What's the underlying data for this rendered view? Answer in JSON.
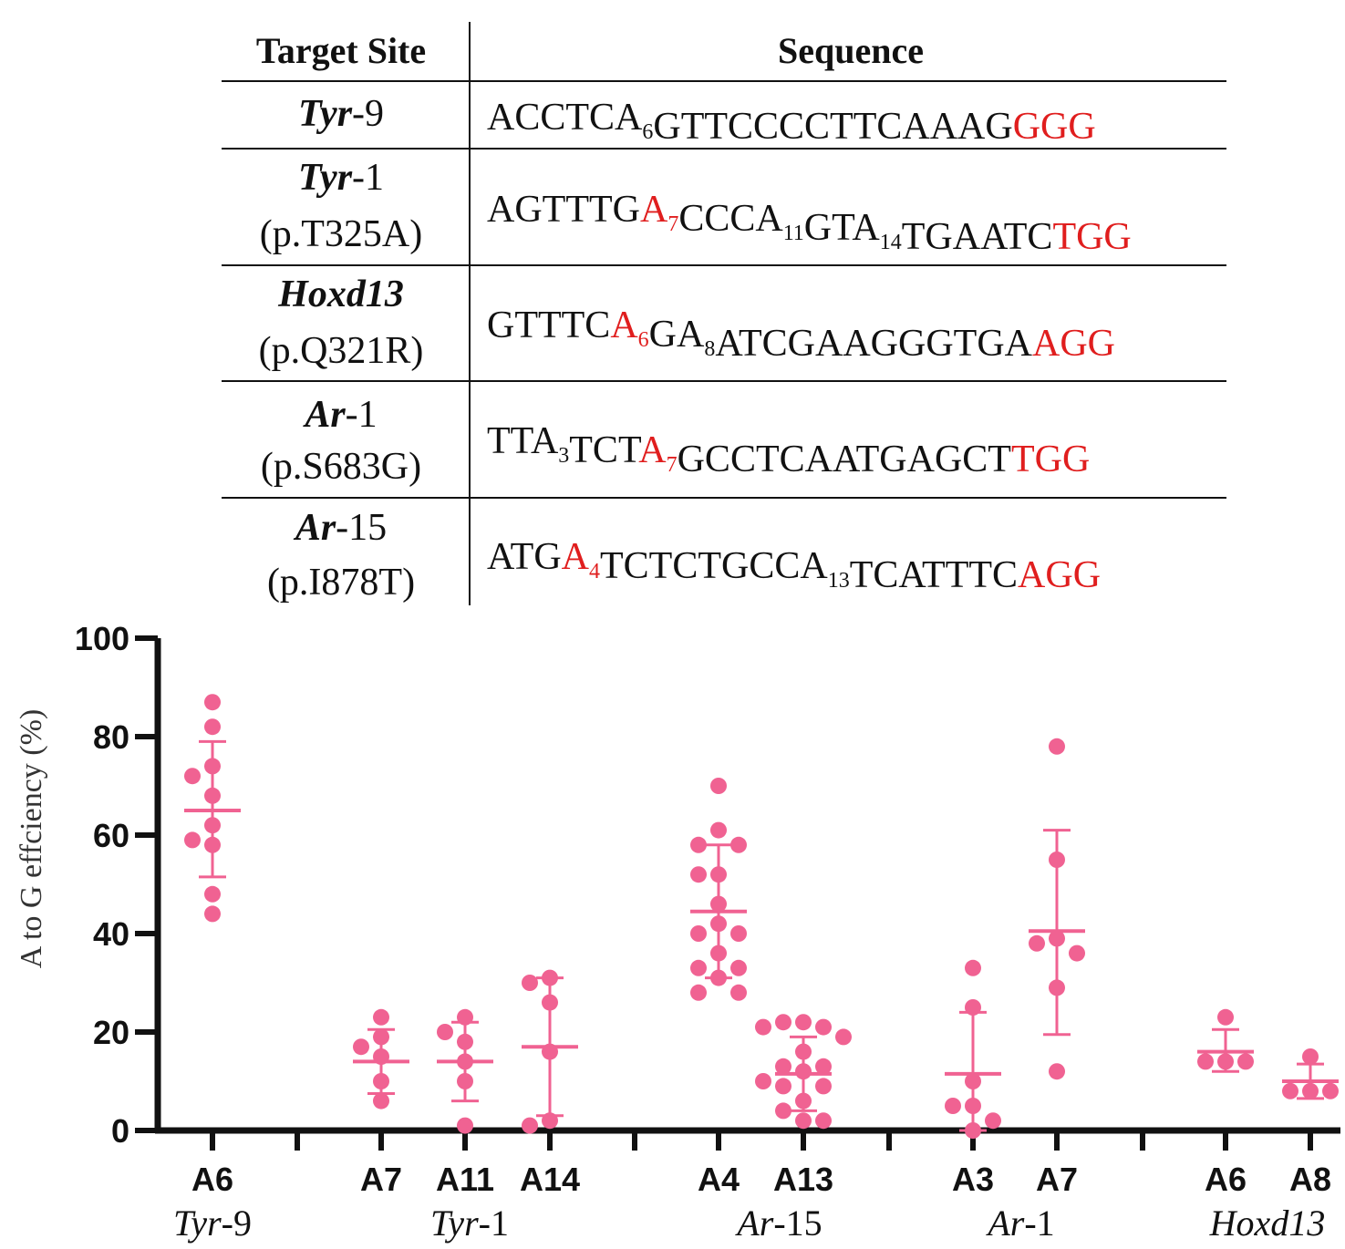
{
  "table": {
    "headers": [
      "Target Site",
      "Sequence"
    ],
    "rows": [
      {
        "site": [
          {
            "t": "Tyr",
            "i": true
          },
          {
            "t": "-9",
            "i": false
          }
        ],
        "sub": "",
        "seq": [
          {
            "t": "ACCTCA"
          },
          {
            "t": "6",
            "s": true
          },
          {
            "t": "GTTCCCCTTCAAAG"
          },
          {
            "t": "GGG",
            "r": true
          }
        ]
      },
      {
        "site": [
          {
            "t": "Tyr",
            "i": true
          },
          {
            "t": "-1",
            "i": false
          }
        ],
        "sub": "(p.T325A)",
        "seq": [
          {
            "t": "AGTTTG"
          },
          {
            "t": "A",
            "r": true
          },
          {
            "t": "7",
            "s": true,
            "r": true
          },
          {
            "t": "CCCA"
          },
          {
            "t": "11",
            "s": true
          },
          {
            "t": "GTA"
          },
          {
            "t": "14",
            "s": true
          },
          {
            "t": "TGAATC"
          },
          {
            "t": "TGG",
            "r": true
          }
        ]
      },
      {
        "site": [
          {
            "t": "Hoxd13",
            "i": true
          }
        ],
        "sub": "(p.Q321R)",
        "seq": [
          {
            "t": "GTTTC"
          },
          {
            "t": "A",
            "r": true
          },
          {
            "t": "6",
            "s": true,
            "r": true
          },
          {
            "t": "GA"
          },
          {
            "t": "8",
            "s": true
          },
          {
            "t": "ATCGAAGGGTGA"
          },
          {
            "t": "AGG",
            "r": true
          }
        ]
      },
      {
        "site": [
          {
            "t": "Ar",
            "i": true
          },
          {
            "t": "-1",
            "i": false
          }
        ],
        "sub": "(p.S683G)",
        "seq": [
          {
            "t": "TTA"
          },
          {
            "t": "3",
            "s": true
          },
          {
            "t": "TCT"
          },
          {
            "t": "A",
            "r": true
          },
          {
            "t": "7",
            "s": true,
            "r": true
          },
          {
            "t": "GCCTCAATGAGCT"
          },
          {
            "t": "TGG",
            "r": true
          }
        ]
      },
      {
        "site": [
          {
            "t": "Ar",
            "i": true
          },
          {
            "t": "-15",
            "i": false
          }
        ],
        "sub": "(p.I878T)",
        "seq": [
          {
            "t": "ATG"
          },
          {
            "t": "A",
            "r": true
          },
          {
            "t": "4",
            "s": true,
            "r": true
          },
          {
            "t": "TCTCTGCCA"
          },
          {
            "t": "13",
            "s": true
          },
          {
            "t": "TCATTTC"
          },
          {
            "t": "AGG",
            "r": true
          }
        ]
      }
    ]
  },
  "colors": {
    "highlight": "#e01e1e",
    "points": "#f06292",
    "text": "#111111"
  },
  "chart_data": {
    "type": "scatter",
    "ylabel": "A to G effciency  (%)",
    "ylim": [
      0,
      100
    ],
    "yticks": [
      0,
      20,
      40,
      60,
      80,
      100
    ],
    "groups": [
      {
        "name": "Tyr-9",
        "italic": "Tyr",
        "rest": "-9",
        "series": [
          {
            "label": "A6",
            "mean": 65,
            "sd_low": 51.5,
            "sd_high": 79,
            "values": [
              87,
              82,
              74,
              72,
              68,
              62,
              59,
              58,
              48,
              44
            ]
          }
        ]
      },
      {
        "name": "Tyr-1",
        "italic": "Tyr",
        "rest": "-1",
        "series": [
          {
            "label": "A7",
            "mean": 14,
            "sd_low": 7.5,
            "sd_high": 20.5,
            "values": [
              23,
              19,
              17,
              15,
              10,
              6
            ]
          },
          {
            "label": "A11",
            "mean": 14,
            "sd_low": 6,
            "sd_high": 22,
            "values": [
              23,
              20,
              18,
              14,
              10,
              1
            ]
          },
          {
            "label": "A14",
            "mean": 17,
            "sd_low": 3,
            "sd_high": 31,
            "values": [
              31,
              30,
              26,
              16,
              2,
              1
            ]
          }
        ]
      },
      {
        "name": "Ar-15",
        "italic": "Ar",
        "rest": "-15",
        "series": [
          {
            "label": "A4",
            "mean": 44.5,
            "sd_low": 31,
            "sd_high": 58,
            "values": [
              70,
              61,
              58,
              58,
              52,
              52,
              46,
              42,
              40,
              40,
              36,
              33,
              33,
              31,
              28,
              28
            ]
          },
          {
            "label": "A13",
            "mean": 11.5,
            "sd_low": 4,
            "sd_high": 19,
            "values": [
              22,
              22,
              21,
              21,
              19,
              16,
              13,
              13,
              12,
              10,
              9,
              9,
              6,
              4,
              2,
              2
            ]
          }
        ]
      },
      {
        "name": "Ar-1",
        "italic": "Ar",
        "rest": "-1",
        "series": [
          {
            "label": "A3",
            "mean": 11.5,
            "sd_low": 0,
            "sd_high": 24,
            "values": [
              33,
              25,
              10,
              5,
              5,
              2,
              0
            ]
          },
          {
            "label": "A7",
            "mean": 40.5,
            "sd_low": 19.5,
            "sd_high": 61,
            "values": [
              78,
              55,
              39,
              38,
              36,
              29,
              12
            ]
          }
        ]
      },
      {
        "name": "Hoxd13",
        "italic": "Hoxd13",
        "rest": "",
        "series": [
          {
            "label": "A6",
            "mean": 16,
            "sd_low": 12,
            "sd_high": 20.5,
            "values": [
              23,
              14,
              14,
              14
            ]
          },
          {
            "label": "A8",
            "mean": 10,
            "sd_low": 6.5,
            "sd_high": 13.5,
            "values": [
              15,
              8,
              8,
              8
            ]
          }
        ]
      }
    ]
  }
}
